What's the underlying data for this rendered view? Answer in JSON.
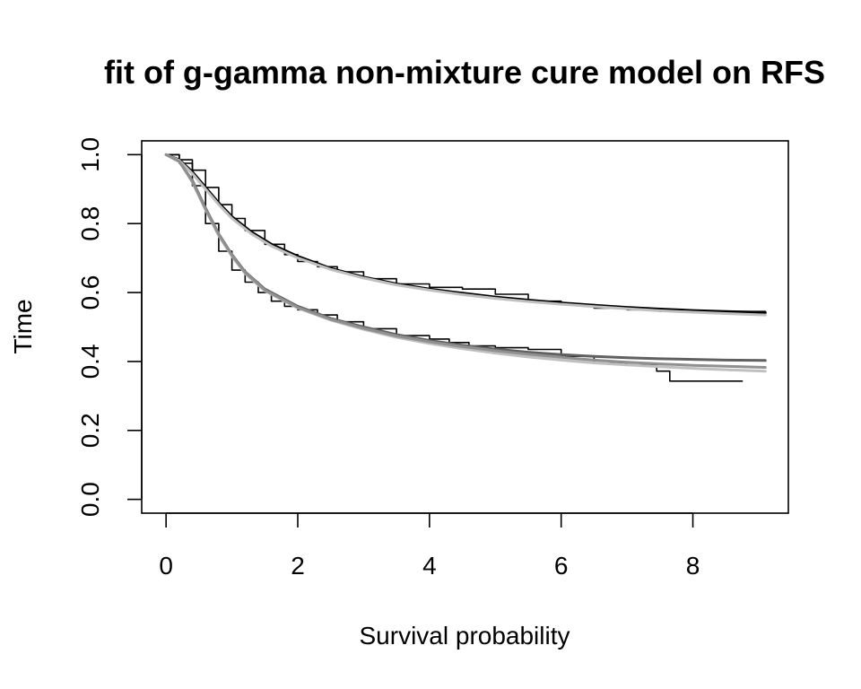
{
  "chart_data": {
    "type": "line",
    "title": "fit of g-gamma non-mixture cure model on RFS",
    "xlabel": "Survival probability",
    "ylabel": "Time",
    "xlim": [
      -0.37,
      9.45
    ],
    "ylim": [
      -0.04,
      1.04
    ],
    "grid": false,
    "legend": "none",
    "x_ticks": [
      0,
      2,
      4,
      6,
      8
    ],
    "x_tick_labels": [
      "0",
      "2",
      "4",
      "6",
      "8"
    ],
    "y_ticks": [
      0.0,
      0.2,
      0.4,
      0.6,
      0.8,
      1.0
    ],
    "y_tick_labels": [
      "0.0",
      "0.2",
      "0.4",
      "0.6",
      "0.8",
      "1.0"
    ],
    "series": [
      {
        "kind": "step",
        "color": "#000000",
        "values": [
          [
            0,
            1.0
          ],
          [
            0.2,
            0.985
          ],
          [
            0.4,
            0.955
          ],
          [
            0.6,
            0.905
          ],
          [
            0.8,
            0.855
          ],
          [
            1.0,
            0.815
          ],
          [
            1.2,
            0.78
          ],
          [
            1.5,
            0.74
          ],
          [
            1.8,
            0.71
          ],
          [
            2.0,
            0.69
          ],
          [
            2.3,
            0.675
          ],
          [
            2.6,
            0.66
          ],
          [
            3.0,
            0.64
          ],
          [
            3.5,
            0.625
          ],
          [
            4.0,
            0.615
          ],
          [
            4.5,
            0.61
          ],
          [
            5.0,
            0.595
          ],
          [
            5.5,
            0.575
          ],
          [
            6.0,
            0.565
          ],
          [
            6.5,
            0.555
          ],
          [
            7.0,
            0.55
          ],
          [
            7.5,
            0.545
          ],
          [
            8.0,
            0.545
          ],
          [
            9.1,
            0.545
          ]
        ]
      },
      {
        "kind": "step",
        "color": "#000000",
        "values": [
          [
            0,
            1.0
          ],
          [
            0.2,
            0.975
          ],
          [
            0.4,
            0.91
          ],
          [
            0.6,
            0.8
          ],
          [
            0.8,
            0.72
          ],
          [
            1.0,
            0.665
          ],
          [
            1.2,
            0.63
          ],
          [
            1.4,
            0.6
          ],
          [
            1.6,
            0.575
          ],
          [
            1.8,
            0.56
          ],
          [
            2.0,
            0.55
          ],
          [
            2.3,
            0.535
          ],
          [
            2.6,
            0.515
          ],
          [
            3.0,
            0.495
          ],
          [
            3.5,
            0.475
          ],
          [
            4.0,
            0.465
          ],
          [
            4.3,
            0.455
          ],
          [
            4.6,
            0.445
          ],
          [
            5.0,
            0.44
          ],
          [
            5.5,
            0.435
          ],
          [
            6.0,
            0.415
          ],
          [
            6.5,
            0.395
          ],
          [
            7.0,
            0.39
          ],
          [
            7.45,
            0.372
          ],
          [
            7.65,
            0.343
          ],
          [
            8.75,
            0.343
          ]
        ]
      },
      {
        "kind": "fit",
        "color": "#000000",
        "values": [
          [
            0,
            1.0
          ],
          [
            0.2,
            0.985
          ],
          [
            0.4,
            0.95
          ],
          [
            0.6,
            0.905
          ],
          [
            0.8,
            0.86
          ],
          [
            1.0,
            0.82
          ],
          [
            1.3,
            0.775
          ],
          [
            1.6,
            0.74
          ],
          [
            2.0,
            0.705
          ],
          [
            2.5,
            0.67
          ],
          [
            3.0,
            0.645
          ],
          [
            3.5,
            0.625
          ],
          [
            4.0,
            0.61
          ],
          [
            4.5,
            0.598
          ],
          [
            5.0,
            0.587
          ],
          [
            5.5,
            0.578
          ],
          [
            6.0,
            0.57
          ],
          [
            6.5,
            0.563
          ],
          [
            7.0,
            0.557
          ],
          [
            7.5,
            0.552
          ],
          [
            8.0,
            0.548
          ],
          [
            8.5,
            0.545
          ],
          [
            9.1,
            0.542
          ]
        ]
      },
      {
        "kind": "fit",
        "color": "#c0c0c0",
        "values": [
          [
            0,
            1.0
          ],
          [
            0.2,
            0.983
          ],
          [
            0.4,
            0.945
          ],
          [
            0.6,
            0.9
          ],
          [
            0.8,
            0.855
          ],
          [
            1.0,
            0.815
          ],
          [
            1.3,
            0.77
          ],
          [
            1.6,
            0.735
          ],
          [
            2.0,
            0.7
          ],
          [
            2.5,
            0.667
          ],
          [
            3.0,
            0.642
          ],
          [
            3.5,
            0.622
          ],
          [
            4.0,
            0.607
          ],
          [
            4.5,
            0.594
          ],
          [
            5.0,
            0.583
          ],
          [
            5.5,
            0.574
          ],
          [
            6.0,
            0.566
          ],
          [
            6.5,
            0.559
          ],
          [
            7.0,
            0.553
          ],
          [
            7.5,
            0.547
          ],
          [
            8.0,
            0.543
          ],
          [
            8.5,
            0.539
          ],
          [
            9.1,
            0.535
          ]
        ]
      },
      {
        "kind": "fit",
        "color": "#606060",
        "values": [
          [
            0,
            1.0
          ],
          [
            0.2,
            0.98
          ],
          [
            0.4,
            0.925
          ],
          [
            0.6,
            0.845
          ],
          [
            0.8,
            0.77
          ],
          [
            1.0,
            0.71
          ],
          [
            1.2,
            0.66
          ],
          [
            1.5,
            0.61
          ],
          [
            2.0,
            0.56
          ],
          [
            2.5,
            0.525
          ],
          [
            3.0,
            0.5
          ],
          [
            3.5,
            0.478
          ],
          [
            4.0,
            0.461
          ],
          [
            4.5,
            0.447
          ],
          [
            5.0,
            0.436
          ],
          [
            5.5,
            0.427
          ],
          [
            6.0,
            0.42
          ],
          [
            6.5,
            0.415
          ],
          [
            7.0,
            0.411
          ],
          [
            7.5,
            0.408
          ],
          [
            8.0,
            0.406
          ],
          [
            8.5,
            0.404
          ],
          [
            9.1,
            0.403
          ]
        ]
      },
      {
        "kind": "fit",
        "color": "#c0c0c0",
        "values": [
          [
            0,
            1.0
          ],
          [
            0.2,
            0.98
          ],
          [
            0.4,
            0.92
          ],
          [
            0.6,
            0.84
          ],
          [
            0.8,
            0.765
          ],
          [
            1.0,
            0.705
          ],
          [
            1.2,
            0.655
          ],
          [
            1.5,
            0.605
          ],
          [
            2.0,
            0.555
          ],
          [
            2.5,
            0.52
          ],
          [
            3.0,
            0.493
          ],
          [
            3.5,
            0.47
          ],
          [
            4.0,
            0.452
          ],
          [
            4.5,
            0.437
          ],
          [
            5.0,
            0.424
          ],
          [
            5.5,
            0.413
          ],
          [
            6.0,
            0.404
          ],
          [
            6.5,
            0.396
          ],
          [
            7.0,
            0.39
          ],
          [
            7.5,
            0.385
          ],
          [
            8.0,
            0.38
          ],
          [
            8.5,
            0.376
          ],
          [
            9.1,
            0.372
          ]
        ]
      },
      {
        "kind": "fit",
        "color": "#909090",
        "values": [
          [
            0,
            1.0
          ],
          [
            0.2,
            0.98
          ],
          [
            0.4,
            0.922
          ],
          [
            0.6,
            0.842
          ],
          [
            0.8,
            0.768
          ],
          [
            1.0,
            0.708
          ],
          [
            1.2,
            0.658
          ],
          [
            1.5,
            0.607
          ],
          [
            2.0,
            0.557
          ],
          [
            2.5,
            0.522
          ],
          [
            3.0,
            0.496
          ],
          [
            3.5,
            0.474
          ],
          [
            4.0,
            0.457
          ],
          [
            4.5,
            0.443
          ],
          [
            5.0,
            0.431
          ],
          [
            5.5,
            0.421
          ],
          [
            6.0,
            0.412
          ],
          [
            6.5,
            0.404
          ],
          [
            7.0,
            0.398
          ],
          [
            7.5,
            0.393
          ],
          [
            8.0,
            0.389
          ],
          [
            8.5,
            0.386
          ],
          [
            9.1,
            0.383
          ]
        ]
      }
    ]
  }
}
